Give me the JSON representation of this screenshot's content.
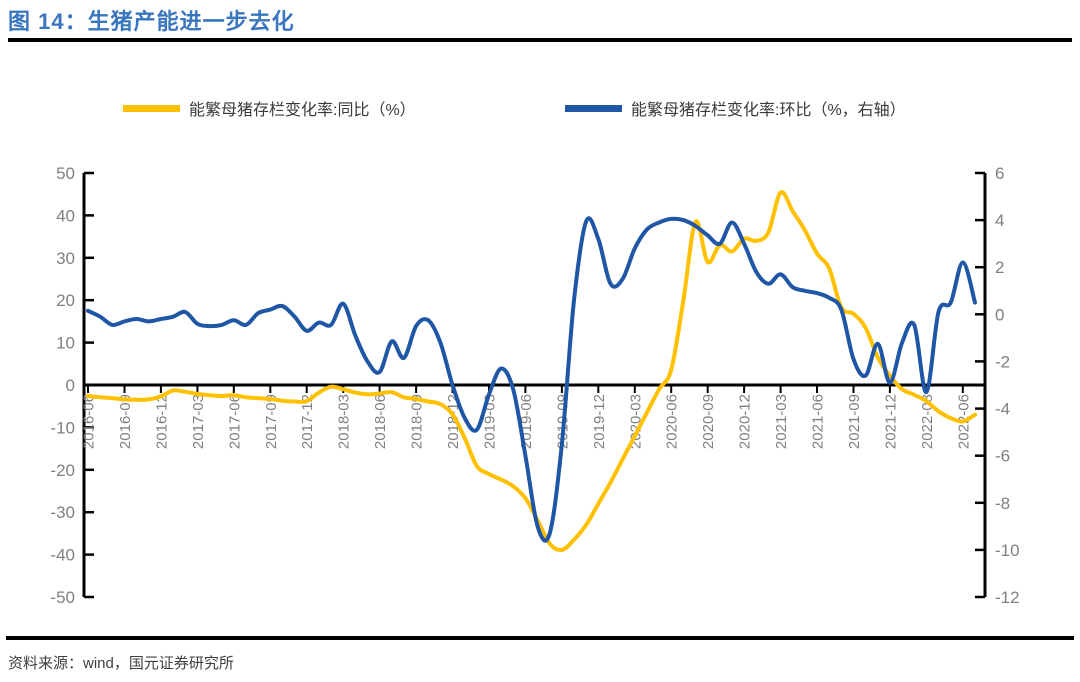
{
  "figure": {
    "title": "图 14：生猪产能进一步去化"
  },
  "chart_data": {
    "type": "line",
    "title": "图 14：生猪产能进一步去化",
    "source_note": "资料来源：wind，国元证券研究所",
    "grid": false,
    "legend_position": "top",
    "left_axis": {
      "min": -50,
      "max": 50,
      "step": 10
    },
    "right_axis": {
      "min": -12,
      "max": 6,
      "step": 2
    },
    "x_tick_labels": [
      "2016-06",
      "2016-09",
      "2016-12",
      "2017-03",
      "2017-06",
      "2017-09",
      "2017-12",
      "2018-03",
      "2018-06",
      "2018-09",
      "2018-12",
      "2019-03",
      "2019-06",
      "2019-09",
      "2019-12",
      "2020-03",
      "2020-06",
      "2020-09",
      "2020-12",
      "2021-03",
      "2021-06",
      "2021-09",
      "2021-12",
      "2022-03",
      "2022-06"
    ],
    "categories": [
      "2016-06",
      "2016-07",
      "2016-08",
      "2016-09",
      "2016-10",
      "2016-11",
      "2016-12",
      "2017-01",
      "2017-02",
      "2017-03",
      "2017-04",
      "2017-05",
      "2017-06",
      "2017-07",
      "2017-08",
      "2017-09",
      "2017-10",
      "2017-11",
      "2017-12",
      "2018-01",
      "2018-02",
      "2018-03",
      "2018-04",
      "2018-05",
      "2018-06",
      "2018-07",
      "2018-08",
      "2018-09",
      "2018-10",
      "2018-11",
      "2018-12",
      "2019-01",
      "2019-02",
      "2019-03",
      "2019-04",
      "2019-05",
      "2019-06",
      "2019-07",
      "2019-08",
      "2019-09",
      "2019-10",
      "2019-11",
      "2019-12",
      "2020-01",
      "2020-02",
      "2020-03",
      "2020-04",
      "2020-05",
      "2020-06",
      "2020-07",
      "2020-08",
      "2020-09",
      "2020-10",
      "2020-11",
      "2020-12",
      "2021-01",
      "2021-02",
      "2021-03",
      "2021-04",
      "2021-05",
      "2021-06",
      "2021-07",
      "2021-08",
      "2021-09",
      "2021-10",
      "2021-11",
      "2021-12",
      "2022-01",
      "2022-02",
      "2022-03",
      "2022-04",
      "2022-05",
      "2022-06",
      "2022-07"
    ],
    "series": [
      {
        "name": "能繁母猪存栏变化率:同比（%）",
        "color": "#FFC000",
        "axis": "left",
        "values": [
          -2.6,
          -2.9,
          -3.1,
          -3.4,
          -3.5,
          -3.4,
          -2.7,
          -1.3,
          -1.6,
          -2.1,
          -2.4,
          -2.6,
          -2.4,
          -2.9,
          -3.1,
          -3.3,
          -3.7,
          -3.9,
          -3.8,
          -1.8,
          -0.4,
          -1.0,
          -1.8,
          -2.2,
          -2.0,
          -1.7,
          -2.9,
          -3.3,
          -3.9,
          -4.5,
          -6.9,
          -12.5,
          -19.1,
          -21.0,
          -22.3,
          -23.9,
          -26.7,
          -31.9,
          -37.4,
          -38.9,
          -36.5,
          -33.0,
          -28.0,
          -23.0,
          -17.5,
          -12.0,
          -6.5,
          -1.0,
          3.6,
          20.0,
          38.5,
          29.0,
          33.0,
          31.5,
          34.5,
          34.0,
          36.0,
          45.4,
          41.0,
          36.5,
          31.0,
          27.5,
          18.3,
          16.8,
          13.5,
          6.5,
          2.2,
          -1.0,
          -2.3,
          -3.8,
          -6.2,
          -7.8,
          -8.6,
          -7.0
        ]
      },
      {
        "name": "能繁母猪存栏变化率:环比（%，右轴）",
        "color": "#1F56A5",
        "axis": "right",
        "values": [
          0.15,
          -0.1,
          -0.45,
          -0.3,
          -0.2,
          -0.3,
          -0.2,
          -0.1,
          0.1,
          -0.4,
          -0.5,
          -0.45,
          -0.25,
          -0.45,
          0.05,
          0.2,
          0.35,
          -0.1,
          -0.7,
          -0.35,
          -0.45,
          0.45,
          -0.9,
          -2.0,
          -2.45,
          -1.15,
          -1.85,
          -0.5,
          -0.25,
          -1.2,
          -3.0,
          -4.4,
          -4.9,
          -3.4,
          -2.3,
          -3.2,
          -6.0,
          -9.0,
          -9.3,
          -5.5,
          0.6,
          3.95,
          3.2,
          1.3,
          1.5,
          2.8,
          3.6,
          3.9,
          4.05,
          4.0,
          3.75,
          3.35,
          3.0,
          3.9,
          3.0,
          1.8,
          1.3,
          1.7,
          1.15,
          1.0,
          0.9,
          0.7,
          0.2,
          -1.9,
          -2.6,
          -1.25,
          -2.9,
          -1.2,
          -0.45,
          -3.3,
          0.1,
          0.5,
          2.2,
          0.5
        ]
      }
    ]
  }
}
